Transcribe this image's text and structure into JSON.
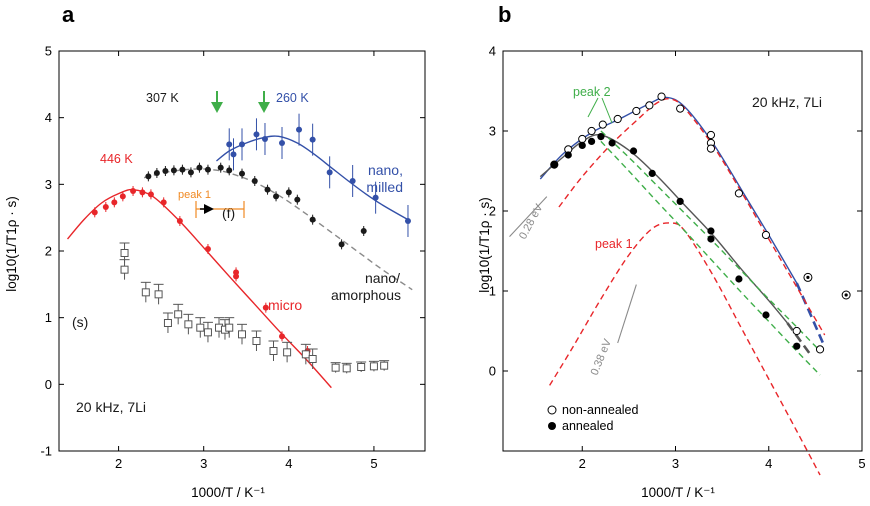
{
  "colors": {
    "red": "#e8262a",
    "blue": "#3350a8",
    "black": "#1a1a1a",
    "gray": "#8a8a8a",
    "green": "#3fae49",
    "orange": "#f08a24",
    "darkred": "#c0201f"
  },
  "panels": {
    "a": {
      "letter": "a",
      "xlabel": "1000/T / K⁻¹",
      "ylabel": "log10(1/T1ρ · s)",
      "annotations": {
        "T307": "307 K",
        "T260": "260 K",
        "T446": "446 K",
        "peak1": "peak 1",
        "f": "(f)",
        "s": "(s)",
        "nano_milled_1": "nano,",
        "nano_milled_2": "milled",
        "nano_amorph_1": "nano/",
        "nano_amorph_2": "amorphous",
        "micro": "micro",
        "cond": "20 kHz, 7Li"
      }
    },
    "b": {
      "letter": "b",
      "xlabel": "1000/T / K⁻¹",
      "ylabel": "log10(1/T1ρ · s)",
      "annotations": {
        "peak2": "peak 2",
        "peak1": "peak 1",
        "ev028": "0.28 eV",
        "ev038": "0.38 eV",
        "cond": "20 kHz, 7Li"
      },
      "legend": {
        "open": "non-annealed",
        "filled": "annealed",
        "position": "bottom-left"
      }
    }
  },
  "chart_data": [
    {
      "type": "scatter",
      "panel": "a",
      "xlabel": "1000/T / K⁻¹",
      "ylabel": "log10(1/T1ρ · s)",
      "xlim": [
        1.3,
        5.6
      ],
      "ylim": [
        -1,
        5
      ],
      "xticks": [
        2,
        3,
        4,
        5
      ],
      "yticks": [
        -1,
        0,
        1,
        2,
        3,
        4,
        5
      ],
      "series": [
        {
          "name": "micro",
          "color": "#e8262a",
          "x": [
            1.72,
            1.85,
            1.95,
            2.05,
            2.17,
            2.28,
            2.38,
            2.53,
            2.72,
            3.05,
            3.38,
            3.38,
            3.73,
            3.92,
            4.22
          ],
          "y": [
            2.58,
            2.66,
            2.73,
            2.82,
            2.9,
            2.88,
            2.85,
            2.73,
            2.45,
            2.03,
            1.62,
            1.68,
            1.15,
            0.72,
            0.5
          ]
        },
        {
          "name": "nano, milled",
          "color": "#3350a8",
          "x": [
            3.3,
            3.35,
            3.45,
            3.62,
            3.72,
            3.92,
            4.12,
            4.28,
            4.48,
            4.75,
            5.02,
            5.4
          ],
          "y": [
            3.6,
            3.45,
            3.6,
            3.75,
            3.68,
            3.62,
            3.82,
            3.67,
            3.18,
            3.05,
            2.8,
            2.45
          ]
        },
        {
          "name": "nano/amorphous",
          "color": "#1a1a1a",
          "x": [
            2.35,
            2.45,
            2.55,
            2.65,
            2.75,
            2.85,
            2.95,
            3.05,
            3.2,
            3.3,
            3.45,
            3.6,
            3.75,
            3.85,
            4.0,
            4.1,
            4.28,
            4.62,
            4.88
          ],
          "y": [
            3.12,
            3.17,
            3.2,
            3.21,
            3.22,
            3.18,
            3.25,
            3.22,
            3.25,
            3.21,
            3.16,
            3.05,
            2.92,
            2.82,
            2.88,
            2.77,
            2.47,
            2.1,
            2.3
          ]
        },
        {
          "name": "(s)",
          "color": "#555555",
          "x": [
            2.07,
            2.07,
            2.32,
            2.47,
            2.58,
            2.7,
            2.82,
            2.96,
            3.05,
            3.18,
            3.25,
            3.3,
            3.45,
            3.62,
            3.82,
            3.98,
            4.2,
            4.28
          ],
          "y": [
            1.97,
            1.72,
            1.38,
            1.35,
            0.92,
            1.05,
            0.9,
            0.85,
            0.78,
            0.85,
            0.82,
            0.85,
            0.75,
            0.65,
            0.5,
            0.48,
            0.45,
            0.38
          ]
        },
        {
          "name": "(s) high T",
          "color": "#555555",
          "x": [
            4.55,
            4.68,
            4.85,
            5.0,
            5.12
          ],
          "y": [
            0.25,
            0.24,
            0.26,
            0.27,
            0.28
          ]
        }
      ],
      "fits": [
        {
          "name": "micro fit",
          "color": "#e8262a",
          "style": "solid",
          "x": [
            1.4,
            1.6,
            1.8,
            2.0,
            2.17,
            2.4,
            2.7,
            3.0,
            3.3,
            3.6,
            3.9,
            4.2,
            4.5
          ],
          "y": [
            2.18,
            2.48,
            2.72,
            2.86,
            2.92,
            2.82,
            2.47,
            2.05,
            1.62,
            1.2,
            0.78,
            0.38,
            -0.05
          ]
        },
        {
          "name": "nano/amorphous fit",
          "color": "#8a8a8a",
          "style": "dashed",
          "x": [
            2.3,
            2.6,
            2.9,
            3.1,
            3.3,
            3.6,
            3.9,
            4.2,
            4.5,
            4.8,
            5.1,
            5.45
          ],
          "y": [
            3.1,
            3.19,
            3.23,
            3.22,
            3.17,
            3.03,
            2.82,
            2.56,
            2.28,
            2.0,
            1.72,
            1.42
          ]
        },
        {
          "name": "nano, milled fit",
          "color": "#3350a8",
          "style": "solid",
          "x": [
            3.15,
            3.3,
            3.5,
            3.7,
            3.88,
            4.1,
            4.3,
            4.5,
            4.7,
            4.9,
            5.1,
            5.4
          ],
          "y": [
            3.35,
            3.5,
            3.62,
            3.7,
            3.72,
            3.62,
            3.45,
            3.25,
            3.05,
            2.86,
            2.69,
            2.47
          ]
        }
      ]
    },
    {
      "type": "scatter",
      "panel": "b",
      "xlabel": "1000/T / K⁻¹",
      "ylabel": "log10(1/T1ρ · s)",
      "xlim": [
        1.15,
        5.0
      ],
      "ylim": [
        -1,
        4
      ],
      "xticks": [
        2,
        3,
        4,
        5
      ],
      "yticks": [
        0,
        1,
        2,
        3,
        4
      ],
      "series": [
        {
          "name": "non-annealed",
          "marker": "open",
          "x": [
            1.7,
            1.85,
            2.0,
            2.1,
            2.22,
            2.38,
            2.58,
            2.72,
            2.85,
            3.05,
            3.38,
            3.38,
            3.38,
            3.68,
            3.97,
            4.3,
            4.55
          ],
          "y": [
            2.58,
            2.77,
            2.9,
            3.0,
            3.08,
            3.15,
            3.25,
            3.32,
            3.43,
            3.28,
            2.95,
            2.85,
            2.78,
            2.22,
            1.7,
            0.5,
            0.27
          ]
        },
        {
          "name": "annealed",
          "marker": "filled",
          "x": [
            1.7,
            1.85,
            2.0,
            2.1,
            2.2,
            2.32,
            2.55,
            2.75,
            3.05,
            3.38,
            3.38,
            3.68,
            3.97,
            4.3
          ],
          "y": [
            2.58,
            2.7,
            2.82,
            2.87,
            2.93,
            2.85,
            2.75,
            2.47,
            2.12,
            1.75,
            1.65,
            1.15,
            0.7,
            0.31
          ]
        },
        {
          "name": "outliers",
          "marker": "dotted-circle",
          "x": [
            4.42,
            4.83
          ],
          "y": [
            1.17,
            0.95
          ]
        }
      ],
      "fits": [
        {
          "name": "non-annealed fit",
          "color": "#3350a8",
          "style": "solid",
          "x": [
            1.55,
            1.8,
            2.1,
            2.4,
            2.7,
            2.9,
            3.1,
            3.4,
            3.7,
            4.0,
            4.3
          ],
          "y": [
            2.4,
            2.72,
            2.98,
            3.15,
            3.33,
            3.42,
            3.3,
            2.85,
            2.28,
            1.7,
            1.1
          ]
        },
        {
          "name": "non-annealed extrapolation",
          "color": "#3350a8",
          "style": "dashed",
          "x": [
            4.3,
            4.6
          ],
          "y": [
            1.1,
            0.3
          ]
        },
        {
          "name": "annealed fit",
          "color": "#555555",
          "style": "solid",
          "x": [
            1.55,
            1.8,
            2.0,
            2.2,
            2.5,
            2.8,
            3.1,
            3.4,
            3.7,
            4.0,
            4.2
          ],
          "y": [
            2.43,
            2.68,
            2.87,
            2.95,
            2.76,
            2.44,
            2.07,
            1.7,
            1.28,
            0.88,
            0.6
          ]
        },
        {
          "name": "annealed extrapolation",
          "color": "#555555",
          "style": "dashed",
          "x": [
            4.2,
            4.45
          ],
          "y": [
            0.6,
            0.2
          ]
        },
        {
          "name": "red dashed upper",
          "color": "#e8262a",
          "style": "dashed",
          "x": [
            1.75,
            2.0,
            2.3,
            2.6,
            2.8,
            2.95,
            3.1,
            3.4,
            3.7,
            4.0,
            4.3,
            4.6
          ],
          "y": [
            2.05,
            2.43,
            2.82,
            3.15,
            3.35,
            3.4,
            3.28,
            2.82,
            2.25,
            1.65,
            1.05,
            0.45
          ]
        },
        {
          "name": "red dashed lower",
          "color": "#e8262a",
          "style": "dashed",
          "x": [
            1.65,
            1.9,
            2.2,
            2.5,
            2.75,
            2.95,
            3.1,
            3.4,
            3.7,
            4.0,
            4.3,
            4.55
          ],
          "y": [
            -0.18,
            0.3,
            0.9,
            1.45,
            1.78,
            1.85,
            1.75,
            1.2,
            0.55,
            -0.1,
            -0.75,
            -1.3
          ]
        },
        {
          "name": "green dashed upper",
          "color": "#3fae49",
          "style": "dashed",
          "x": [
            2.2,
            2.5,
            2.8,
            3.1,
            3.4,
            3.7,
            4.0,
            4.3,
            4.55
          ],
          "y": [
            3.0,
            2.67,
            2.32,
            1.97,
            1.62,
            1.26,
            0.9,
            0.55,
            0.25
          ]
        },
        {
          "name": "green dashed lower",
          "color": "#3fae49",
          "style": "dashed",
          "x": [
            2.2,
            2.5,
            2.8,
            3.1,
            3.4,
            3.7,
            4.0,
            4.3,
            4.55
          ],
          "y": [
            2.87,
            2.5,
            2.12,
            1.75,
            1.37,
            0.99,
            0.62,
            0.25,
            -0.05
          ]
        },
        {
          "name": "0.28 eV slope",
          "color": "#8a8a8a",
          "style": "solid",
          "x": [
            1.22,
            1.62
          ],
          "y": [
            1.68,
            2.18
          ]
        },
        {
          "name": "0.38 eV slope",
          "color": "#8a8a8a",
          "style": "solid",
          "x": [
            2.38,
            2.58
          ],
          "y": [
            0.35,
            1.08
          ]
        }
      ]
    }
  ]
}
